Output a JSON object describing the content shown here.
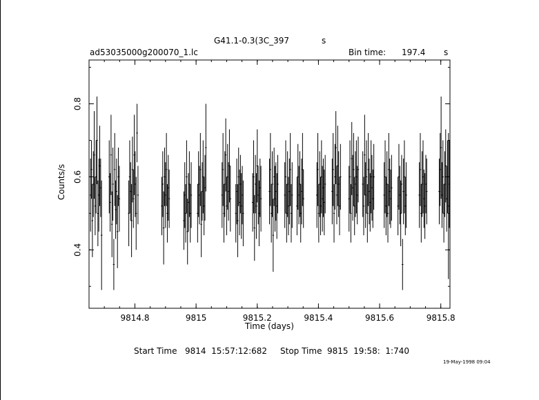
{
  "chart_data": {
    "type": "line",
    "title": "G41.1-0.3(3C_397",
    "title_suffix": "s",
    "filename": "ad53035000g200070_1.lc",
    "bin_time_label": "Bin time:",
    "bin_time_value": "197.4",
    "bin_time_unit": "s",
    "xlabel": "Time (days)",
    "ylabel": "Counts/s",
    "xlim": [
      9814.65,
      9815.83
    ],
    "ylim": [
      0.24,
      0.92
    ],
    "x_ticks": [
      9814.8,
      9815,
      9815.2,
      9815.4,
      9815.6,
      9815.8
    ],
    "x_tick_labels": [
      "9814.8",
      "9815",
      "9815.2",
      "9815.4",
      "9815.6",
      "9815.8"
    ],
    "y_ticks": [
      0.4,
      0.6,
      0.8
    ],
    "y_tick_labels": [
      "0.4",
      "0.6",
      "0.8"
    ],
    "error_bars": true,
    "series": [
      {
        "x": [
          9814.655,
          9814.658,
          9814.661,
          9814.664,
          9814.667,
          9814.67,
          9814.673,
          9814.676,
          9814.679,
          9814.682,
          9814.685,
          9814.688,
          9814.691,
          9814.716,
          9814.719,
          9814.722,
          9814.725,
          9814.728,
          9814.731,
          9814.734,
          9814.737,
          9814.74,
          9814.743,
          9814.746,
          9814.749,
          9814.78,
          9814.783,
          9814.786,
          9814.789,
          9814.792,
          9814.795,
          9814.798,
          9814.801,
          9814.804,
          9814.807,
          9814.81,
          9814.888,
          9814.891,
          9814.894,
          9814.897,
          9814.9,
          9814.903,
          9814.906,
          9814.909,
          9814.912,
          9814.96,
          9814.963,
          9814.966,
          9814.969,
          9814.972,
          9814.975,
          9814.978,
          9814.981,
          9814.984,
          9815.005,
          9815.008,
          9815.011,
          9815.014,
          9815.017,
          9815.02,
          9815.023,
          9815.026,
          9815.029,
          9815.032,
          9815.085,
          9815.088,
          9815.091,
          9815.094,
          9815.097,
          9815.1,
          9815.103,
          9815.106,
          9815.109,
          9815.112,
          9815.13,
          9815.133,
          9815.136,
          9815.139,
          9815.142,
          9815.145,
          9815.148,
          9815.151,
          9815.154,
          9815.185,
          9815.188,
          9815.191,
          9815.194,
          9815.197,
          9815.2,
          9815.203,
          9815.206,
          9815.209,
          9815.212,
          9815.24,
          9815.243,
          9815.246,
          9815.249,
          9815.252,
          9815.255,
          9815.258,
          9815.261,
          9815.264,
          9815.267,
          9815.29,
          9815.293,
          9815.296,
          9815.299,
          9815.302,
          9815.305,
          9815.308,
          9815.311,
          9815.314,
          9815.33,
          9815.333,
          9815.336,
          9815.339,
          9815.342,
          9815.345,
          9815.348,
          9815.351,
          9815.395,
          9815.398,
          9815.401,
          9815.404,
          9815.407,
          9815.41,
          9815.413,
          9815.416,
          9815.419,
          9815.422,
          9815.445,
          9815.448,
          9815.451,
          9815.454,
          9815.457,
          9815.46,
          9815.463,
          9815.466,
          9815.469,
          9815.472,
          9815.5,
          9815.503,
          9815.506,
          9815.509,
          9815.512,
          9815.515,
          9815.518,
          9815.521,
          9815.524,
          9815.527,
          9815.53,
          9815.545,
          9815.548,
          9815.551,
          9815.554,
          9815.557,
          9815.56,
          9815.563,
          9815.566,
          9815.569,
          9815.572,
          9815.575,
          9815.578,
          9815.581,
          9815.615,
          9815.618,
          9815.621,
          9815.624,
          9815.627,
          9815.63,
          9815.633,
          9815.636,
          9815.639,
          9815.66,
          9815.663,
          9815.666,
          9815.669,
          9815.672,
          9815.675,
          9815.678,
          9815.681,
          9815.684,
          9815.687,
          9815.73,
          9815.733,
          9815.736,
          9815.739,
          9815.742,
          9815.745,
          9815.748,
          9815.751,
          9815.754,
          9815.795,
          9815.798,
          9815.801,
          9815.804,
          9815.807,
          9815.81,
          9815.813,
          9815.816,
          9815.819,
          9815.822,
          9815.825,
          9815.828
        ],
        "y": [
          0.55,
          0.62,
          0.48,
          0.58,
          0.66,
          0.52,
          0.6,
          0.7,
          0.5,
          0.55,
          0.63,
          0.57,
          0.44,
          0.6,
          0.53,
          0.66,
          0.47,
          0.58,
          0.36,
          0.62,
          0.51,
          0.56,
          0.45,
          0.6,
          0.54,
          0.5,
          0.6,
          0.56,
          0.48,
          0.62,
          0.54,
          0.66,
          0.58,
          0.5,
          0.72,
          0.55,
          0.52,
          0.58,
          0.46,
          0.6,
          0.55,
          0.62,
          0.5,
          0.57,
          0.54,
          0.48,
          0.55,
          0.5,
          0.6,
          0.45,
          0.53,
          0.58,
          0.5,
          0.55,
          0.5,
          0.58,
          0.55,
          0.62,
          0.47,
          0.56,
          0.6,
          0.52,
          0.57,
          0.68,
          0.55,
          0.62,
          0.5,
          0.58,
          0.66,
          0.52,
          0.6,
          0.56,
          0.63,
          0.54,
          0.5,
          0.56,
          0.48,
          0.6,
          0.53,
          0.58,
          0.52,
          0.55,
          0.5,
          0.53,
          0.6,
          0.46,
          0.58,
          0.52,
          0.63,
          0.55,
          0.5,
          0.57,
          0.54,
          0.56,
          0.62,
          0.5,
          0.58,
          0.44,
          0.6,
          0.54,
          0.56,
          0.52,
          0.58,
          0.55,
          0.6,
          0.5,
          0.58,
          0.52,
          0.56,
          0.62,
          0.5,
          0.55,
          0.52,
          0.6,
          0.55,
          0.58,
          0.5,
          0.56,
          0.62,
          0.54,
          0.55,
          0.62,
          0.5,
          0.58,
          0.52,
          0.6,
          0.54,
          0.57,
          0.53,
          0.58,
          0.56,
          0.62,
          0.5,
          0.6,
          0.68,
          0.55,
          0.63,
          0.58,
          0.52,
          0.6,
          0.54,
          0.6,
          0.5,
          0.65,
          0.57,
          0.62,
          0.52,
          0.58,
          0.6,
          0.55,
          0.62,
          0.58,
          0.52,
          0.66,
          0.55,
          0.6,
          0.5,
          0.62,
          0.56,
          0.53,
          0.6,
          0.57,
          0.54,
          0.6,
          0.55,
          0.6,
          0.52,
          0.58,
          0.5,
          0.62,
          0.56,
          0.54,
          0.57,
          0.52,
          0.6,
          0.55,
          0.5,
          0.58,
          0.36,
          0.56,
          0.6,
          0.52,
          0.55,
          0.55,
          0.62,
          0.5,
          0.58,
          0.6,
          0.54,
          0.52,
          0.58,
          0.56,
          0.56,
          0.62,
          0.68,
          0.55,
          0.6,
          0.5,
          0.58,
          0.63,
          0.54,
          0.6,
          0.52,
          0.58
        ],
        "y_err": [
          0.1,
          0.08,
          0.1,
          0.09,
          0.12,
          0.08,
          0.1,
          0.12,
          0.09,
          0.1,
          0.11,
          0.08,
          0.15,
          0.1,
          0.08,
          0.11,
          0.09,
          0.1,
          0.07,
          0.1,
          0.08,
          0.09,
          0.1,
          0.08,
          0.09,
          0.09,
          0.1,
          0.08,
          0.1,
          0.09,
          0.08,
          0.11,
          0.09,
          0.1,
          0.08,
          0.08,
          0.08,
          0.09,
          0.1,
          0.08,
          0.09,
          0.1,
          0.08,
          0.09,
          0.08,
          0.08,
          0.09,
          0.08,
          0.1,
          0.09,
          0.08,
          0.09,
          0.08,
          0.09,
          0.08,
          0.09,
          0.08,
          0.1,
          0.09,
          0.08,
          0.1,
          0.08,
          0.09,
          0.12,
          0.09,
          0.1,
          0.08,
          0.09,
          0.1,
          0.08,
          0.09,
          0.08,
          0.1,
          0.09,
          0.08,
          0.09,
          0.1,
          0.08,
          0.09,
          0.08,
          0.09,
          0.08,
          0.09,
          0.08,
          0.1,
          0.09,
          0.08,
          0.09,
          0.1,
          0.08,
          0.09,
          0.08,
          0.09,
          0.09,
          0.1,
          0.08,
          0.09,
          0.1,
          0.08,
          0.09,
          0.08,
          0.09,
          0.08,
          0.09,
          0.1,
          0.08,
          0.09,
          0.08,
          0.09,
          0.1,
          0.08,
          0.09,
          0.08,
          0.09,
          0.08,
          0.09,
          0.08,
          0.09,
          0.1,
          0.08,
          0.09,
          0.1,
          0.08,
          0.09,
          0.08,
          0.1,
          0.09,
          0.08,
          0.09,
          0.08,
          0.09,
          0.1,
          0.08,
          0.09,
          0.1,
          0.08,
          0.11,
          0.09,
          0.08,
          0.09,
          0.09,
          0.1,
          0.08,
          0.1,
          0.09,
          0.1,
          0.08,
          0.09,
          0.1,
          0.08,
          0.09,
          0.09,
          0.08,
          0.11,
          0.09,
          0.1,
          0.08,
          0.1,
          0.09,
          0.08,
          0.1,
          0.09,
          0.08,
          0.09,
          0.09,
          0.1,
          0.08,
          0.09,
          0.08,
          0.1,
          0.09,
          0.08,
          0.09,
          0.08,
          0.09,
          0.08,
          0.09,
          0.08,
          0.07,
          0.09,
          0.1,
          0.08,
          0.09,
          0.09,
          0.1,
          0.08,
          0.09,
          0.1,
          0.08,
          0.09,
          0.08,
          0.09,
          0.09,
          0.1,
          0.14,
          0.09,
          0.1,
          0.08,
          0.09,
          0.1,
          0.09,
          0.1,
          0.2,
          0.12
        ]
      }
    ]
  },
  "footer": {
    "start_label": "Start Time",
    "start_value": "9814  15:57:12:682",
    "stop_label": "Stop Time",
    "stop_value": "9815  19:58:  1:740",
    "datestamp": "19-May-1998 09:04"
  }
}
